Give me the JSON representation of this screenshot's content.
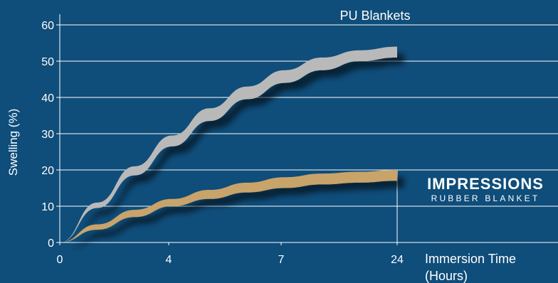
{
  "chart_data": {
    "type": "area",
    "ylabel": "Swelling (%)",
    "xlabel": "Immersion Time\n(Hours)",
    "x_ticks": [
      "0",
      "4",
      "7",
      "24"
    ],
    "y_ticks": [
      0,
      10,
      20,
      30,
      40,
      50,
      60
    ],
    "ylim": [
      0,
      60
    ],
    "grid": true,
    "series": [
      {
        "name": "PU Blankets",
        "color": "#b9b9b9",
        "x": [
          0,
          1,
          2,
          3,
          4,
          5,
          6,
          7,
          8,
          9
        ],
        "upper": [
          0,
          11,
          21,
          29.5,
          37,
          43,
          47.5,
          51,
          53,
          54
        ],
        "lower": [
          0,
          9.5,
          18.5,
          26.5,
          33.5,
          39.5,
          44,
          47.5,
          50,
          51
        ]
      },
      {
        "name": "IMPRESSIONS",
        "subtitle": "RUBBER BLANKET",
        "color": "#c8a36a",
        "x": [
          0,
          1,
          2,
          3,
          4,
          5,
          6,
          7,
          8,
          9
        ],
        "upper": [
          0,
          5,
          9,
          12,
          14.5,
          16.5,
          18,
          19,
          19.5,
          20
        ],
        "lower": [
          0,
          3.5,
          7,
          10,
          12,
          13.8,
          15,
          16,
          16.5,
          17
        ]
      }
    ]
  }
}
